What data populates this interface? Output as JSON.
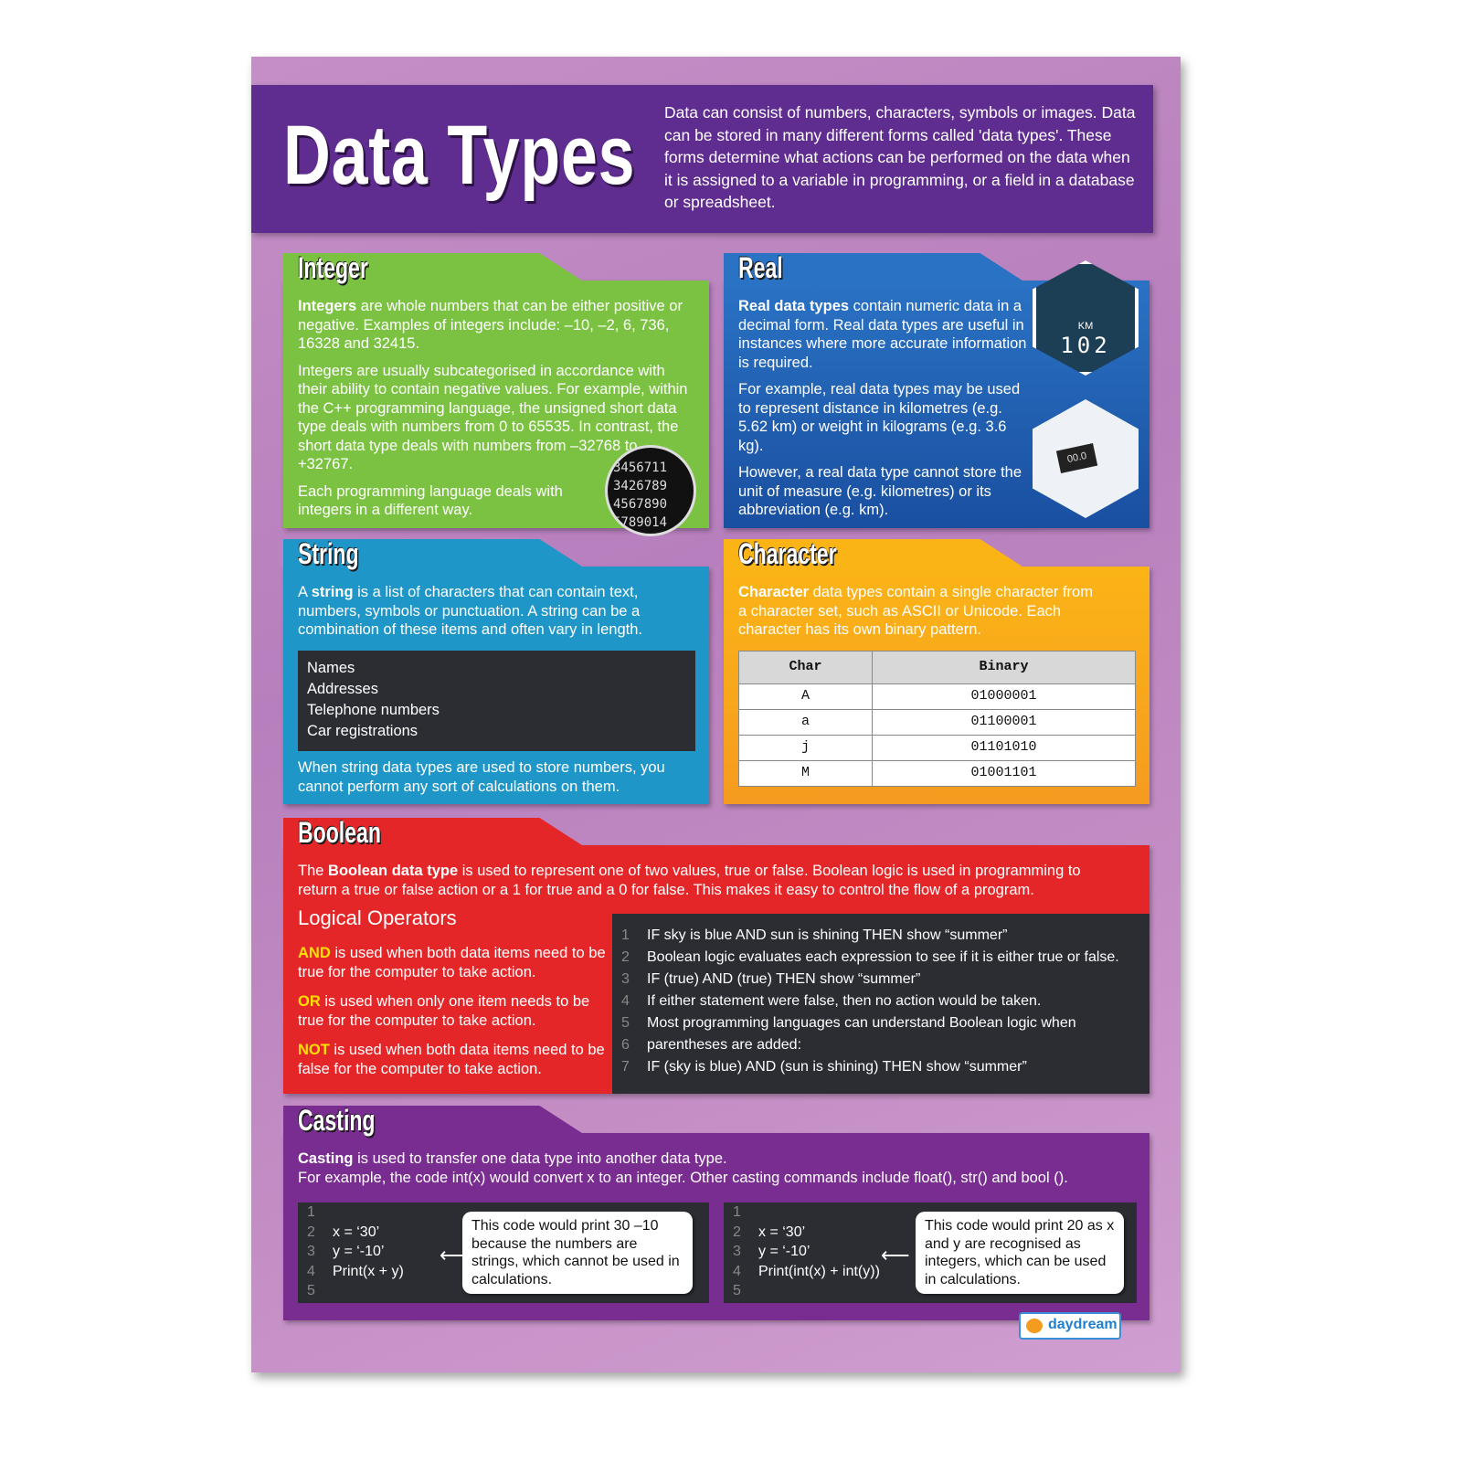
{
  "header": {
    "title": "Data Types",
    "intro": "Data can consist of numbers, characters, symbols or images. Data can be stored in many different forms called 'data types'. These forms determine what actions can be performed on the data when it is assigned to a variable in programming, or a field in a database or spreadsheet."
  },
  "integer": {
    "title": "Integer",
    "p1_bold": "Integers",
    "p1": " are whole numbers that can be either positive or negative. Examples of integers include: –10, –2, 6, 736, 16328 and 32415.",
    "p2": "Integers are usually subcategorised in accordance with their ability to contain negative values. For example, within the C++ programming language, the unsigned short data type deals with numbers from 0 to 65535. In contrast, the short data type deals with numbers from –32768 to +32767.",
    "p3": "Each programming language deals with integers in a different way."
  },
  "real": {
    "title": "Real",
    "p1_bold": "Real data types",
    "p1": " contain numeric data in a decimal form. Real data types are useful in instances where more accurate information is required.",
    "p2": "For example, real data types may be used to represent distance in kilometres (e.g. 5.62 km) or weight in kilograms (e.g. 3.6 kg).",
    "p3": "However, a real data type cannot store the unit of measure (e.g. kilometres) or its abbreviation (e.g. km).",
    "gauge_unit": "KM",
    "gauge_value": "102",
    "scale_value": "00.0"
  },
  "string": {
    "title": "String",
    "p1a": "A ",
    "p1_bold": "string",
    "p1": " is a list of characters that can contain text, numbers, symbols or punctuation. A string can be a combination of these items and often vary in length.",
    "examples": [
      "Names",
      "Addresses",
      "Telephone numbers",
      "Car registrations"
    ],
    "p2": "When string data types are used to store numbers, you cannot perform any sort of calculations on them."
  },
  "character": {
    "title": "Character",
    "p1_bold": "Character",
    "p1": " data types contain a single character from a character set, such as ASCII or Unicode. Each character has its own binary pattern.",
    "headers": [
      "Char",
      "Binary"
    ],
    "rows": [
      [
        "A",
        "01000001"
      ],
      [
        "a",
        "01100001"
      ],
      [
        "j",
        "01101010"
      ],
      [
        "M",
        "01001101"
      ]
    ]
  },
  "boolean": {
    "title": "Boolean",
    "p1a": "The ",
    "p1_bold": "Boolean data type",
    "p1": " is used to represent one of two values, true or false. Boolean logic is used in programming to return a true or false action or a 1 for true and a 0 for false. This makes it easy to control the flow of a program.",
    "ops_title": "Logical Operators",
    "ops": [
      {
        "k": "AND",
        "t": " is used when both data items need to be true for the computer to take action."
      },
      {
        "k": "OR",
        "t": " is used when only one item needs to be true for the computer to take action."
      },
      {
        "k": "NOT",
        "t": " is used when both data items need to be false for the computer to take action."
      }
    ],
    "code": [
      "IF sky is blue AND sun is shining THEN show “summer”",
      "Boolean logic evaluates each expression to see if it is either true or false.",
      "IF (true) AND (true) THEN show “summer”",
      "If either statement were false, then no action would be taken.",
      "Most programming languages can understand Boolean logic when",
      "parentheses are added:",
      "IF (sky is blue) AND (sun is shining) THEN show “summer”"
    ]
  },
  "casting": {
    "title": "Casting",
    "p1_bold": "Casting",
    "p1": " is used to transfer one data type into another data type.",
    "p2": "For example, the code int(x) would convert x to an integer. Other casting commands include float(), str() and bool ().",
    "ex1": {
      "code": [
        "",
        "x = ‘30’",
        "y = ‘-10’",
        "Print(x + y)",
        ""
      ],
      "note": "This code would print 30 –10 because the numbers are strings, which cannot be used in calculations."
    },
    "ex2": {
      "code": [
        "",
        "x = ‘30’",
        "y = ‘-10’",
        "Print(int(x) + int(y))",
        ""
      ],
      "note": "This code would print 20 as x and y are recognised as integers, which can be used in calculations."
    }
  },
  "logo": "daydream",
  "colors": {
    "integer": "#7cc242",
    "real": "#1f5fb4",
    "string": "#1f96c8",
    "character": "#f7a81b",
    "boolean": "#e52629",
    "casting": "#7a2d91",
    "header": "#5f2d8f"
  }
}
